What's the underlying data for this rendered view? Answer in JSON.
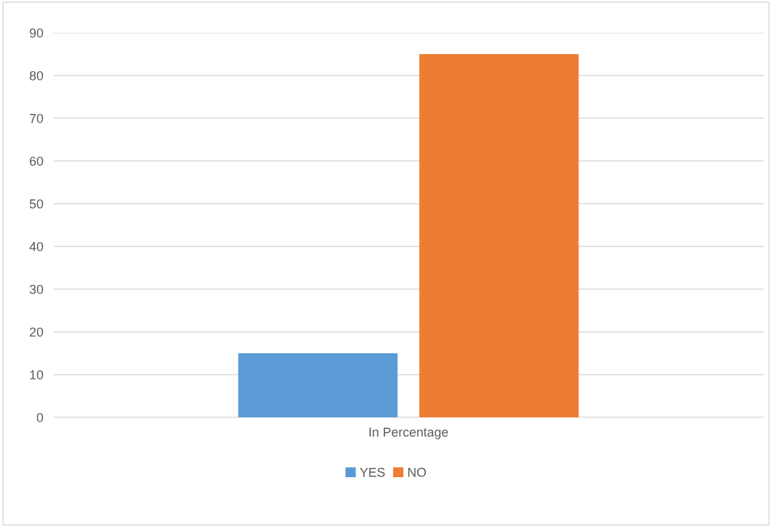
{
  "chart_data": {
    "type": "bar",
    "categories": [
      "In Percentage"
    ],
    "series": [
      {
        "name": "YES",
        "color": "#5b9bd5",
        "values": [
          15
        ]
      },
      {
        "name": "NO",
        "color": "#ed7d31",
        "values": [
          85
        ]
      }
    ],
    "ylim": [
      0,
      90
    ],
    "yticks": [
      0,
      10,
      20,
      30,
      40,
      50,
      60,
      70,
      80,
      90
    ],
    "grid": "y",
    "legend": "bottom"
  }
}
